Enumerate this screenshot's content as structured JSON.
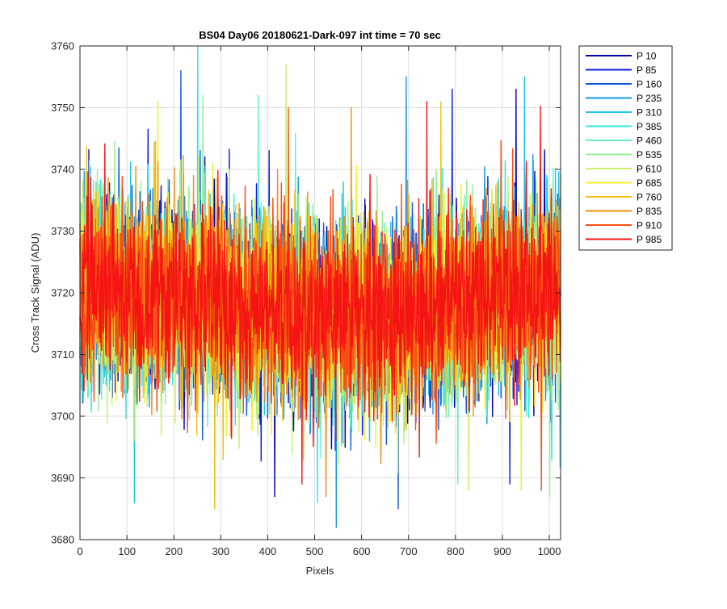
{
  "chart_data": {
    "type": "line",
    "title": "BS04 Day06 20180621-Dark-097 int time = 70 sec",
    "xlabel": "Pixels",
    "ylabel": "Cross Track Signal (ADU)",
    "xlim": [
      0,
      1024
    ],
    "ylim": [
      3680,
      3760
    ],
    "xticks": [
      0,
      100,
      200,
      300,
      400,
      500,
      600,
      700,
      800,
      900,
      1000
    ],
    "yticks": [
      3680,
      3690,
      3700,
      3710,
      3720,
      3730,
      3740,
      3750,
      3760
    ],
    "grid": true,
    "legend_position": "outside-top-right",
    "series": [
      {
        "name": "P 10",
        "color": "#0000b3",
        "mean": 3718,
        "spread": 7.5,
        "max": 3753,
        "min": 3687
      },
      {
        "name": "P 85",
        "color": "#0a1ee0",
        "mean": 3718,
        "spread": 7.5,
        "max": 3753,
        "min": 3689
      },
      {
        "name": "P 160",
        "color": "#0f5adc",
        "mean": 3718,
        "spread": 7.5,
        "max": 3756,
        "min": 3685
      },
      {
        "name": "P 235",
        "color": "#1496e6",
        "mean": 3718,
        "spread": 7.5,
        "max": 3755,
        "min": 3682
      },
      {
        "name": "P 310",
        "color": "#1ec3f0",
        "mean": 3718,
        "spread": 7.5,
        "max": 3755,
        "min": 3686
      },
      {
        "name": "P 385",
        "color": "#2de6e6",
        "mean": 3718,
        "spread": 7.5,
        "max": 3760,
        "min": 3686
      },
      {
        "name": "P 460",
        "color": "#64f0c8",
        "mean": 3718,
        "spread": 7.5,
        "max": 3752,
        "min": 3689
      },
      {
        "name": "P 535",
        "color": "#96f096",
        "mean": 3718,
        "spread": 7.5,
        "max": 3752,
        "min": 3687
      },
      {
        "name": "P 610",
        "color": "#c8f064",
        "mean": 3718,
        "spread": 7.5,
        "max": 3757,
        "min": 3688
      },
      {
        "name": "P 685",
        "color": "#f0f02d",
        "mean": 3718,
        "spread": 7.5,
        "max": 3751,
        "min": 3688
      },
      {
        "name": "P 760",
        "color": "#f5be14",
        "mean": 3718,
        "spread": 7.5,
        "max": 3751,
        "min": 3685
      },
      {
        "name": "P 835",
        "color": "#f58c0f",
        "mean": 3718,
        "spread": 7.5,
        "max": 3750,
        "min": 3687
      },
      {
        "name": "P 910",
        "color": "#f55014",
        "mean": 3718,
        "spread": 7.5,
        "max": 3750,
        "min": 3688
      },
      {
        "name": "P 985",
        "color": "#f51414",
        "mean": 3718,
        "spread": 7.5,
        "max": 3751,
        "min": 3689
      }
    ]
  }
}
